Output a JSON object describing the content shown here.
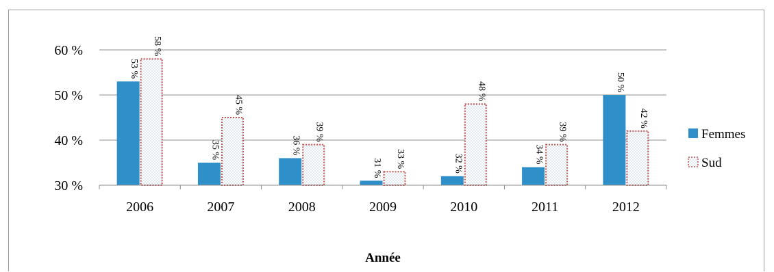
{
  "chart_data": {
    "type": "bar",
    "categories": [
      "2006",
      "2007",
      "2008",
      "2009",
      "2010",
      "2011",
      "2012"
    ],
    "series": [
      {
        "name": "Femmes",
        "values": [
          53,
          35,
          36,
          31,
          32,
          34,
          50
        ],
        "labels": [
          "53 %",
          "35 %",
          "36 %",
          "31 %",
          "32 %",
          "34 %",
          "50 %"
        ],
        "color": "#2e8fc9"
      },
      {
        "name": "Sud",
        "values": [
          58,
          45,
          39,
          33,
          48,
          39,
          42
        ],
        "labels": [
          "58 %",
          "45 %",
          "39 %",
          "33 %",
          "48 %",
          "39 %",
          "42 %"
        ],
        "color": "#c0504d",
        "pattern": "dotted"
      }
    ],
    "title": "",
    "xlabel": "Année",
    "ylabel": "",
    "ylim": [
      30,
      60
    ],
    "yticks": [
      30,
      40,
      50,
      60
    ],
    "ytick_labels": [
      "30 %",
      "40 %",
      "50 %",
      "60 %"
    ],
    "grid": true,
    "legend_position": "right"
  }
}
